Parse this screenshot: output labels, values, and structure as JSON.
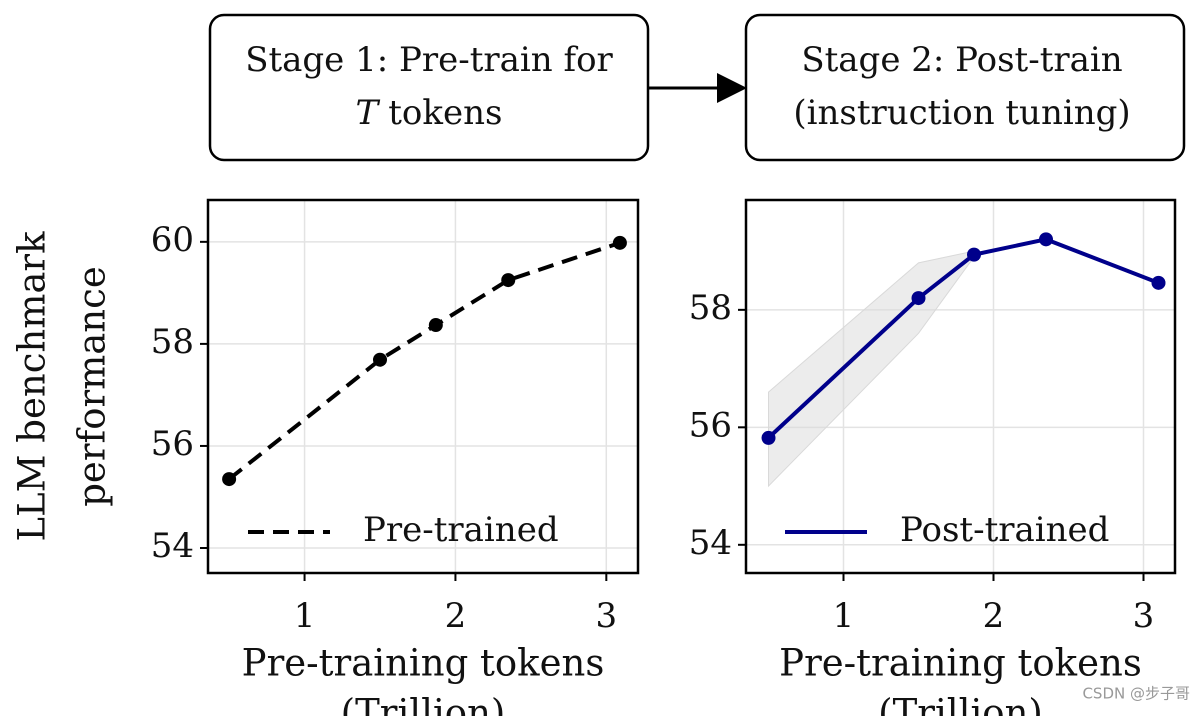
{
  "diagram": {
    "boxes": [
      {
        "line1": "Stage 1: Pre-train for",
        "line2_italic": "T",
        "line2": "tokens"
      },
      {
        "line1": "Stage 2: Post-train",
        "line2": "(instruction tuning)"
      }
    ]
  },
  "chart_data": [
    {
      "type": "line",
      "ylabel": [
        "LLM benchmark",
        "performance"
      ],
      "xlabel": [
        "Pre-training tokens",
        "(Trillion)"
      ],
      "x": [
        0.5,
        1.5,
        1.87,
        2.35,
        3.09
      ],
      "series": [
        {
          "name": "Pre-trained",
          "color": "#000000",
          "dashed": true,
          "values": [
            55.35,
            57.69,
            58.37,
            59.25,
            59.98
          ]
        }
      ],
      "xlim": [
        0.36,
        3.21
      ],
      "ylim": [
        53.51,
        60.82
      ],
      "xticks": [
        1,
        2,
        3
      ],
      "yticks": [
        54,
        56,
        58,
        60
      ],
      "grid": true,
      "legend": "lower right"
    },
    {
      "type": "line",
      "xlabel": [
        "Pre-training tokens",
        "(Trillion)"
      ],
      "x": [
        0.5,
        1.5,
        1.87,
        2.35,
        3.1
      ],
      "series": [
        {
          "name": "Post-trained",
          "color": "#00008b",
          "dashed": false,
          "values": [
            55.82,
            58.2,
            58.94,
            59.2,
            58.46
          ]
        }
      ],
      "band": {
        "x": [
          0.5,
          1.5,
          1.87
        ],
        "lower": [
          55.0,
          57.6,
          58.9
        ],
        "upper": [
          56.6,
          58.8,
          59.0
        ],
        "color": "#d9d9d9"
      },
      "xlim": [
        0.35,
        3.21
      ],
      "ylim": [
        53.52,
        59.87
      ],
      "xticks": [
        1,
        2,
        3
      ],
      "yticks": [
        54,
        56,
        58
      ],
      "grid": true,
      "legend": "lower right"
    }
  ],
  "watermark": "CSDN @步子哥"
}
